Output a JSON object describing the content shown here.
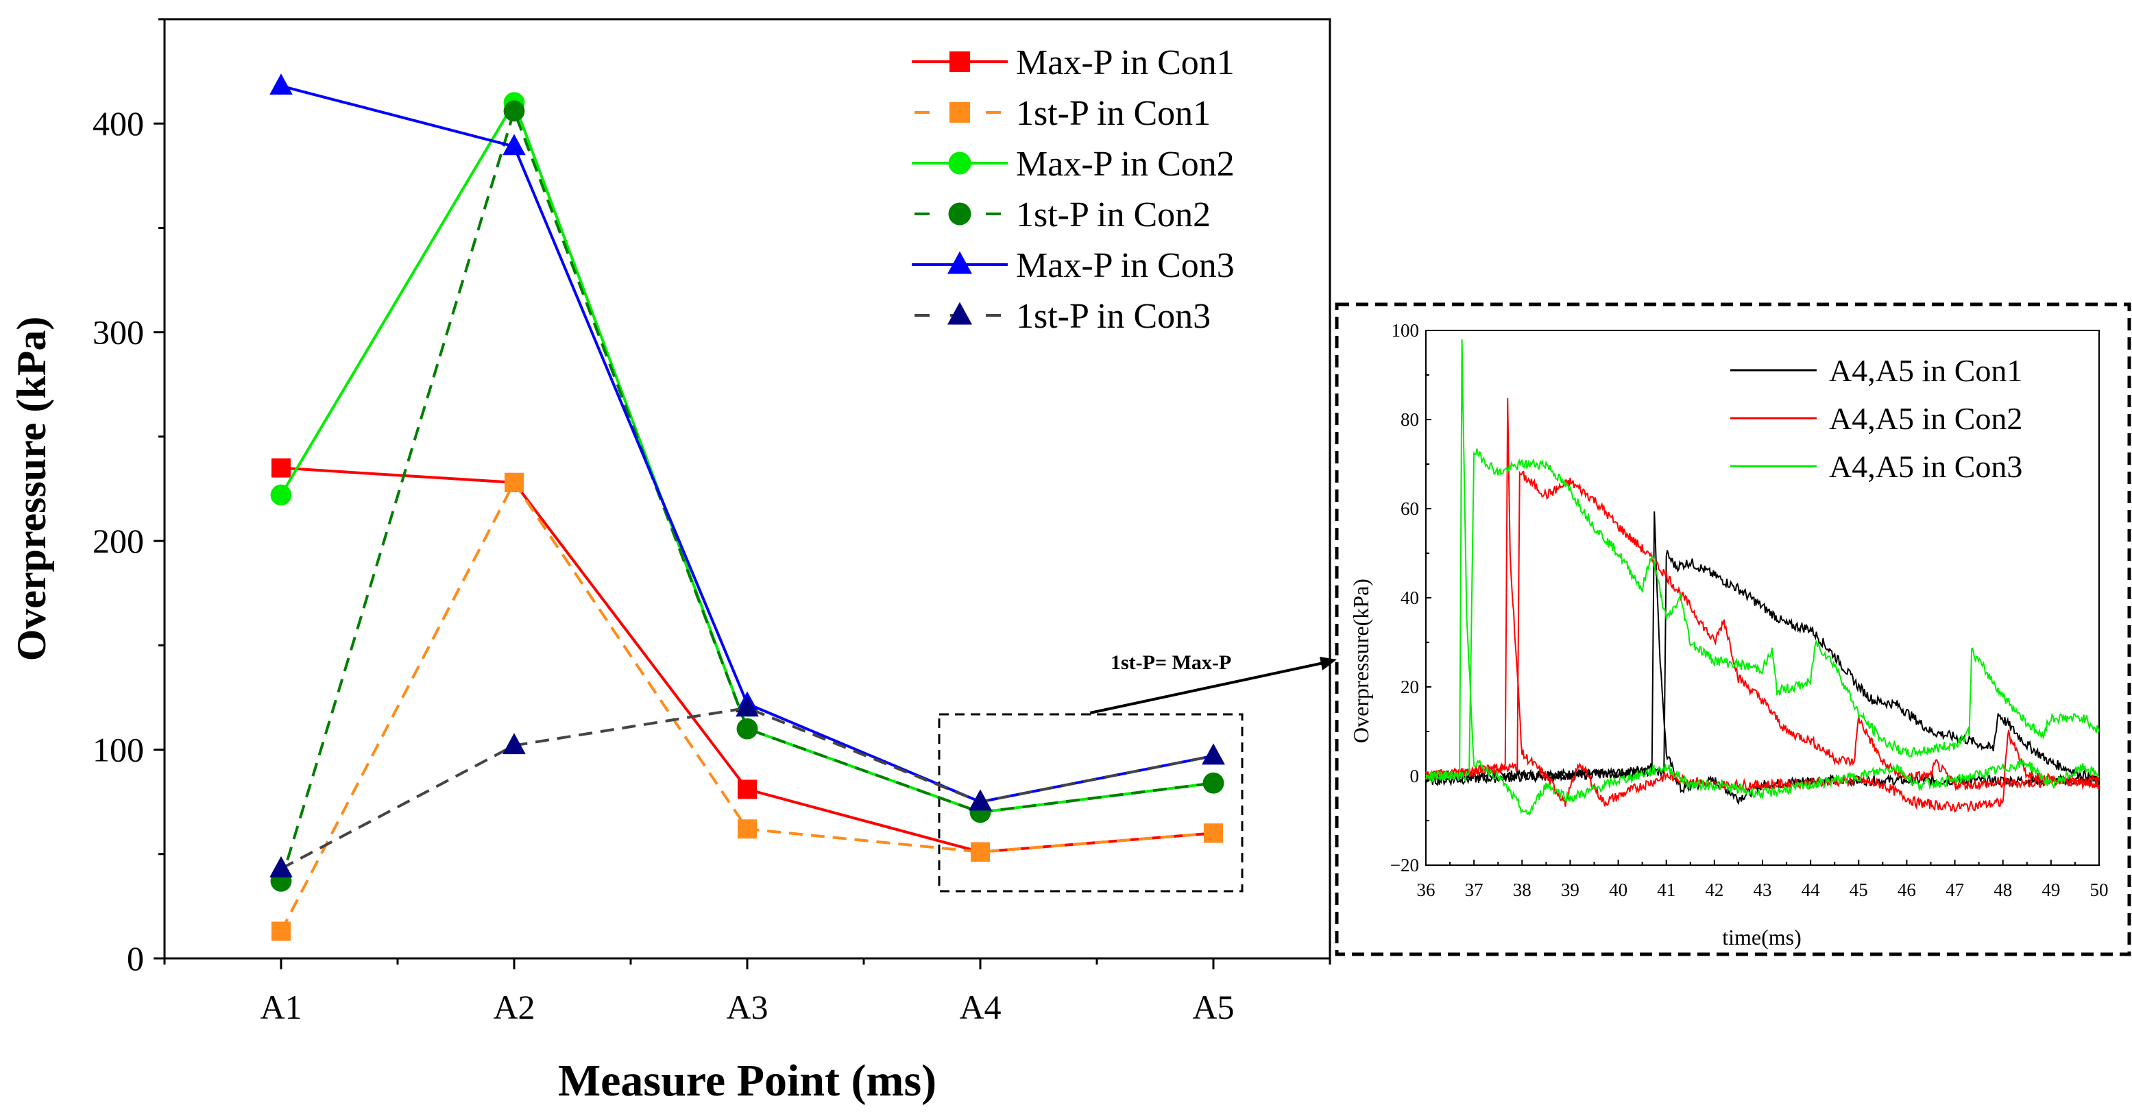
{
  "chart_data": [
    {
      "type": "line",
      "title": "",
      "xlabel": "Measure Point (ms)",
      "ylabel": "Overpressure (kPa)",
      "categories": [
        "A1",
        "A2",
        "A3",
        "A4",
        "A5"
      ],
      "ylim": [
        0,
        450
      ],
      "yticks": [
        0,
        100,
        200,
        300,
        400
      ],
      "grid": false,
      "legend_position": "top-right",
      "series": [
        {
          "name": "Max-P in Con1",
          "color": "#ff0000",
          "dash": false,
          "marker": "square",
          "values": [
            235,
            228,
            81,
            51,
            60
          ]
        },
        {
          "name": "1st-P in Con1",
          "color": "#ff8c1a",
          "dash": true,
          "marker": "square",
          "values": [
            13,
            228,
            62,
            51,
            60
          ]
        },
        {
          "name": "Max-P in Con2",
          "color": "#00ee00",
          "dash": false,
          "marker": "circle",
          "values": [
            222,
            410,
            110,
            70,
            84
          ]
        },
        {
          "name": "1st-P in Con2",
          "color": "#007f00",
          "dash": true,
          "marker": "circle",
          "values": [
            37,
            406,
            110,
            70,
            84
          ]
        },
        {
          "name": "Max-P in Con3",
          "color": "#0000ff",
          "dash": false,
          "marker": "triangle",
          "values": [
            418,
            389,
            122,
            75,
            97
          ]
        },
        {
          "name": "1st-P in Con3",
          "color": "#000080",
          "line_color": "#444444",
          "dash": true,
          "marker": "triangle",
          "values": [
            43,
            102,
            120,
            75,
            97
          ]
        }
      ],
      "annotation": "1st-P= Max-P"
    },
    {
      "type": "line",
      "title": "",
      "xlabel": "time(ms)",
      "ylabel": "Overpressure(kPa)",
      "xlim": [
        36,
        50
      ],
      "ylim": [
        -20,
        100
      ],
      "xticks": [
        36,
        37,
        38,
        39,
        40,
        41,
        42,
        43,
        44,
        45,
        46,
        47,
        48,
        49,
        50
      ],
      "yticks": [
        -20,
        0,
        20,
        40,
        60,
        80,
        100
      ],
      "legend_position": "top-right",
      "series": [
        {
          "name": "A4,A5 in Con1",
          "color": "#000000",
          "traces": [
            [
              [
                36,
                0
              ],
              [
                40,
                0.5
              ],
              [
                40.7,
                2
              ],
              [
                40.75,
                60
              ],
              [
                40.85,
                30
              ],
              [
                41,
                5
              ],
              [
                41.3,
                -3
              ],
              [
                42,
                -1
              ],
              [
                42.5,
                -5
              ],
              [
                43,
                -2
              ],
              [
                44,
                -1
              ],
              [
                50,
                -1
              ]
            ],
            [
              [
                36,
                -1
              ],
              [
                40.95,
                1
              ],
              [
                41,
                50
              ],
              [
                41.2,
                47
              ],
              [
                41.5,
                48
              ],
              [
                42,
                45
              ],
              [
                42.5,
                42
              ],
              [
                43,
                38
              ],
              [
                43.5,
                34
              ],
              [
                44,
                33
              ],
              [
                44.5,
                27
              ],
              [
                45,
                20
              ],
              [
                45.3,
                17
              ],
              [
                45.8,
                16
              ],
              [
                46.5,
                10
              ],
              [
                47.3,
                8
              ],
              [
                47.8,
                6
              ],
              [
                47.9,
                14
              ],
              [
                48.5,
                7
              ],
              [
                49,
                3
              ],
              [
                50,
                -1
              ]
            ]
          ]
        },
        {
          "name": "A4,A5 in Con2",
          "color": "#ff0000",
          "traces": [
            [
              [
                36,
                0
              ],
              [
                37.65,
                2
              ],
              [
                37.7,
                84
              ],
              [
                37.75,
                50
              ],
              [
                38,
                5
              ],
              [
                38.5,
                0
              ],
              [
                38.9,
                -6
              ],
              [
                39.2,
                3
              ],
              [
                39.7,
                -6
              ],
              [
                40.3,
                -3
              ],
              [
                41,
                0
              ],
              [
                42,
                -2
              ],
              [
                43,
                -2
              ],
              [
                45,
                -1
              ],
              [
                45.5,
                -2
              ],
              [
                46.2,
                -6
              ],
              [
                47,
                -7
              ],
              [
                48,
                -6
              ],
              [
                48.1,
                10
              ],
              [
                48.5,
                0
              ],
              [
                50,
                -2
              ]
            ],
            [
              [
                36,
                0
              ],
              [
                37.9,
                2
              ],
              [
                37.95,
                68
              ],
              [
                38.5,
                63
              ],
              [
                39,
                66
              ],
              [
                39.5,
                62
              ],
              [
                40,
                56
              ],
              [
                40.5,
                51
              ],
              [
                41,
                45
              ],
              [
                41.5,
                38
              ],
              [
                42,
                30
              ],
              [
                42.2,
                35
              ],
              [
                42.5,
                22
              ],
              [
                43,
                17
              ],
              [
                43.5,
                10
              ],
              [
                44,
                8
              ],
              [
                44.5,
                4
              ],
              [
                44.9,
                3
              ],
              [
                45,
                13
              ],
              [
                45.5,
                3
              ],
              [
                45.9,
                0
              ],
              [
                46.5,
                0
              ],
              [
                46.6,
                3
              ],
              [
                47,
                -2
              ],
              [
                50,
                -1
              ]
            ]
          ]
        },
        {
          "name": "A4,A5 in Con3",
          "color": "#00ee00",
          "traces": [
            [
              [
                36,
                0
              ],
              [
                36.7,
                0
              ],
              [
                36.75,
                97
              ],
              [
                36.85,
                35
              ],
              [
                37,
                3
              ],
              [
                37.5,
                0
              ],
              [
                38.1,
                -9
              ],
              [
                38.5,
                -2
              ],
              [
                39,
                -5
              ],
              [
                40,
                -1
              ],
              [
                41,
                2
              ],
              [
                41.5,
                -2
              ],
              [
                42,
                -2
              ],
              [
                43,
                -4
              ],
              [
                44,
                -2
              ],
              [
                45,
                0
              ],
              [
                45.8,
                2
              ],
              [
                46.2,
                -2
              ],
              [
                47,
                -1
              ],
              [
                48.5,
                3
              ],
              [
                49,
                -2
              ],
              [
                49.7,
                2
              ],
              [
                50,
                0
              ]
            ],
            [
              [
                36,
                0
              ],
              [
                36.9,
                0
              ],
              [
                37,
                73
              ],
              [
                37.5,
                68
              ],
              [
                38,
                70
              ],
              [
                38.5,
                70
              ],
              [
                39,
                64
              ],
              [
                39.5,
                56
              ],
              [
                40,
                50
              ],
              [
                40.5,
                42
              ],
              [
                40.7,
                50
              ],
              [
                41,
                35
              ],
              [
                41.3,
                40
              ],
              [
                41.5,
                30
              ],
              [
                42,
                26
              ],
              [
                43,
                24
              ],
              [
                43.2,
                28
              ],
              [
                43.3,
                19
              ],
              [
                44,
                21
              ],
              [
                44.1,
                30
              ],
              [
                44.5,
                25
              ],
              [
                45,
                14
              ],
              [
                45.5,
                8
              ],
              [
                46,
                5
              ],
              [
                47,
                7
              ],
              [
                47.3,
                10
              ],
              [
                47.35,
                28
              ],
              [
                48,
                18
              ],
              [
                48.5,
                12
              ],
              [
                48.8,
                9
              ],
              [
                49,
                13
              ],
              [
                49.7,
                13
              ],
              [
                50,
                10
              ]
            ]
          ]
        }
      ]
    }
  ]
}
